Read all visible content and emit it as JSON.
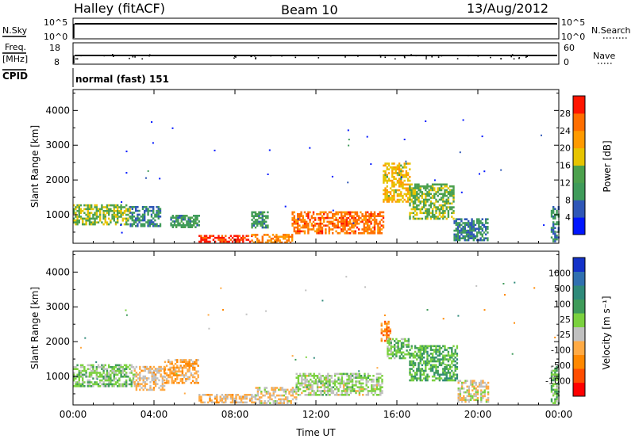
{
  "header": {
    "station": "Halley (fitACF)",
    "beam": "Beam 10",
    "date": "13/Aug/2012"
  },
  "panels": {
    "nsky": {
      "label": "N.Sky",
      "ticks": [
        "10^5",
        "10^0"
      ],
      "right_label": "N.Search",
      "right_ticks": [
        "10^5",
        "10^0"
      ]
    },
    "freq": {
      "label_top": "Freq.",
      "label_bottom": "[MHz]",
      "ticks": [
        "18",
        "8"
      ],
      "right_label": "Nave",
      "right_ticks": [
        "60",
        "0"
      ]
    },
    "cpid": {
      "label": "CPID",
      "value": "normal (fast) 151"
    }
  },
  "colors": {
    "power": [
      "#0016ff",
      "#2f57b7",
      "#3f9b5a",
      "#4ca14d",
      "#e7c400",
      "#ff9a00",
      "#ff6e00",
      "#ff1500"
    ],
    "velocity": [
      "#ff0000",
      "#ff4d00",
      "#ff8800",
      "#ffaa44",
      "#c0c0c0",
      "#7bd13f",
      "#3f9b5a",
      "#2f8a7a",
      "#3070b0",
      "#1432c8"
    ]
  },
  "chart_data": [
    {
      "type": "heatmap",
      "title": "",
      "xlabel": "",
      "ylabel": "Slant Range [km]",
      "xlim": [
        0,
        24
      ],
      "ylim": [
        180,
        4600
      ],
      "x_ticks": [
        "00:00",
        "04:00",
        "08:00",
        "12:00",
        "16:00",
        "20:00",
        "00:00"
      ],
      "y_ticks": [
        1000,
        2000,
        3000,
        4000
      ],
      "colorbar": {
        "label": "Power [dB]",
        "ticks": [
          "4",
          "8",
          "12",
          "16",
          "20",
          "24",
          "28"
        ],
        "range": [
          0,
          30
        ]
      },
      "regions": [
        {
          "t": [
            0.0,
            2.8
          ],
          "r": [
            750,
            1300
          ],
          "level": 14
        },
        {
          "t": [
            2.8,
            4.3
          ],
          "r": [
            700,
            1250
          ],
          "level": 8
        },
        {
          "t": [
            4.8,
            6.2
          ],
          "r": [
            650,
            1000
          ],
          "level": 10
        },
        {
          "t": [
            6.2,
            8.8
          ],
          "r": [
            230,
            420
          ],
          "level": 28
        },
        {
          "t": [
            8.8,
            10.8
          ],
          "r": [
            230,
            450
          ],
          "level": 22
        },
        {
          "t": [
            8.8,
            9.6
          ],
          "r": [
            650,
            1100
          ],
          "level": 10
        },
        {
          "t": [
            10.8,
            15.3
          ],
          "r": [
            450,
            1100
          ],
          "level": 24
        },
        {
          "t": [
            15.3,
            16.6
          ],
          "r": [
            1400,
            2500
          ],
          "level": 18
        },
        {
          "t": [
            16.6,
            18.8
          ],
          "r": [
            900,
            1900
          ],
          "level": 14
        },
        {
          "t": [
            18.8,
            20.5
          ],
          "r": [
            250,
            900
          ],
          "level": 8
        },
        {
          "t": [
            23.6,
            24.0
          ],
          "r": [
            250,
            1250
          ],
          "level": 8
        }
      ]
    },
    {
      "type": "heatmap",
      "title": "",
      "xlabel": "Time UT",
      "ylabel": "Slant Range [km]",
      "xlim": [
        0,
        24
      ],
      "ylim": [
        180,
        4600
      ],
      "x_ticks": [
        "00:00",
        "04:00",
        "08:00",
        "12:00",
        "16:00",
        "20:00",
        "00:00"
      ],
      "y_ticks": [
        1000,
        2000,
        3000,
        4000
      ],
      "colorbar": {
        "label": "Velocity [m s⁻¹]",
        "ticks": [
          "1000",
          "500",
          "100",
          "25",
          "-25",
          "-100",
          "-500",
          "-1000"
        ],
        "range": [
          -1200,
          1200
        ]
      },
      "regions": [
        {
          "t": [
            0.0,
            3.0
          ],
          "r": [
            700,
            1350
          ],
          "level": 100
        },
        {
          "t": [
            3.0,
            4.5
          ],
          "r": [
            600,
            1300
          ],
          "level": -250
        },
        {
          "t": [
            4.5,
            6.2
          ],
          "r": [
            800,
            1500
          ],
          "level": -400
        },
        {
          "t": [
            6.2,
            9.0
          ],
          "r": [
            230,
            500
          ],
          "level": -300
        },
        {
          "t": [
            9.0,
            11.0
          ],
          "r": [
            230,
            700
          ],
          "level": -200
        },
        {
          "t": [
            11.0,
            15.3
          ],
          "r": [
            450,
            1100
          ],
          "level": 0
        },
        {
          "t": [
            15.2,
            15.7
          ],
          "r": [
            2000,
            2600
          ],
          "level": -600
        },
        {
          "t": [
            15.5,
            16.6
          ],
          "r": [
            1500,
            2100
          ],
          "level": 200
        },
        {
          "t": [
            16.6,
            19.0
          ],
          "r": [
            900,
            1900
          ],
          "level": 300
        },
        {
          "t": [
            19.0,
            20.5
          ],
          "r": [
            250,
            900
          ],
          "level": -150
        },
        {
          "t": [
            23.6,
            24.0
          ],
          "r": [
            250,
            1300
          ],
          "level": 200
        }
      ]
    }
  ]
}
